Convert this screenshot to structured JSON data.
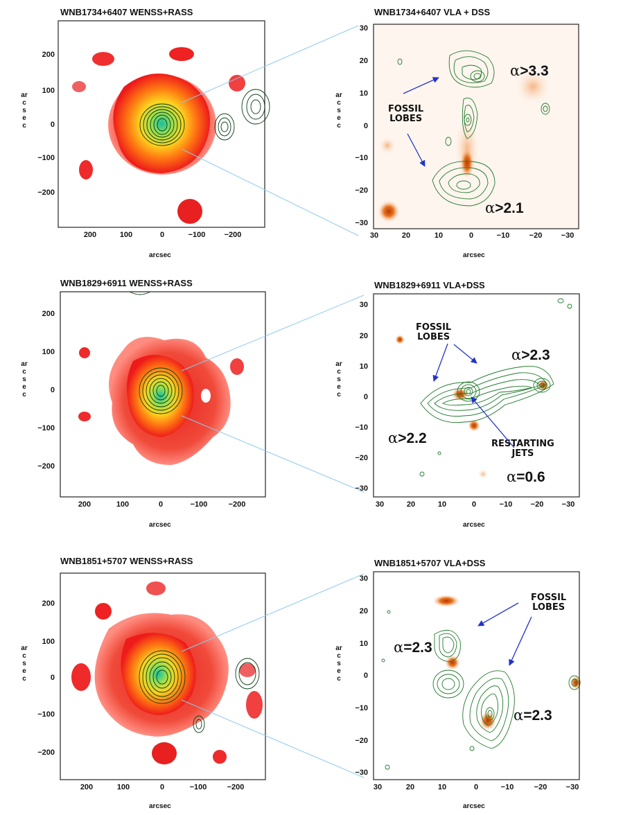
{
  "panels": [
    {
      "title": "WNB1734+6407  WENSS+RASS",
      "xlabel": "arcsec",
      "ylabel": "arcsec",
      "xticks": [
        "200",
        "100",
        "0",
        "−100",
        "−200"
      ],
      "yticks": [
        "200",
        "100",
        "0",
        "−100",
        "−200"
      ]
    },
    {
      "title": "WNB1734+6407   VLA + DSS",
      "xlabel": "arcsec",
      "ylabel": "arcsec",
      "xticks": [
        "30",
        "20",
        "10",
        "0",
        "−10",
        "−20",
        "−30"
      ],
      "yticks": [
        "30",
        "20",
        "10",
        "0",
        "−10",
        "−20",
        "−30"
      ],
      "annotations": {
        "fossil": "FOSSIL\nLOBES"
      },
      "alphas": [
        {
          "op": ">",
          "val": "3.3"
        },
        {
          "op": ">",
          "val": "2.1"
        }
      ]
    },
    {
      "title": "WNB1829+6911  WENSS+RASS",
      "xlabel": "arcsec",
      "ylabel": "arcsec",
      "xticks": [
        "200",
        "100",
        "0",
        "−100",
        "−200"
      ],
      "yticks": [
        "200",
        "100",
        "0",
        "−100",
        "−200"
      ]
    },
    {
      "title": "WNB1829+6911  VLA+DSS",
      "xlabel": "arcsec",
      "ylabel": "arcsec",
      "xticks": [
        "30",
        "20",
        "10",
        "0",
        "−10",
        "−20",
        "−30"
      ],
      "yticks": [
        "30",
        "20",
        "10",
        "0",
        "−10",
        "−20",
        "−30"
      ],
      "annotations": {
        "fossil": "FOSSIL\nLOBES",
        "restarting": "RESTARTING\nJETS"
      },
      "alphas": [
        {
          "op": ">",
          "val": "2.3"
        },
        {
          "op": ">",
          "val": "2.2"
        },
        {
          "op": "=",
          "val": "0.6"
        }
      ]
    },
    {
      "title": "WNB1851+5707 WENSS+RASS",
      "xlabel": "arcsec",
      "ylabel": "arcsec",
      "xticks": [
        "200",
        "100",
        "0",
        "−100",
        "−200"
      ],
      "yticks": [
        "200",
        "100",
        "0",
        "−100",
        "−200"
      ]
    },
    {
      "title": "WNB1851+5707   VLA+DSS",
      "xlabel": "arcsec",
      "ylabel": "arcsec",
      "xticks": [
        "30",
        "20",
        "10",
        "0",
        "−10",
        "−20",
        "−30"
      ],
      "yticks": [
        "30",
        "20",
        "10",
        "0",
        "−10",
        "−20",
        "−30"
      ],
      "annotations": {
        "fossil": "FOSSIL\nLOBES"
      },
      "alphas": [
        {
          "op": "=",
          "val": "2.3"
        },
        {
          "op": "=",
          "val": "2.3"
        }
      ]
    }
  ],
  "alpha_symbol": "α",
  "colors": {
    "contour": "#1f7a2a",
    "contour_dark": "#0b3d14",
    "arrow": "#2233cc",
    "zoom_line": "#8ec9ee"
  }
}
